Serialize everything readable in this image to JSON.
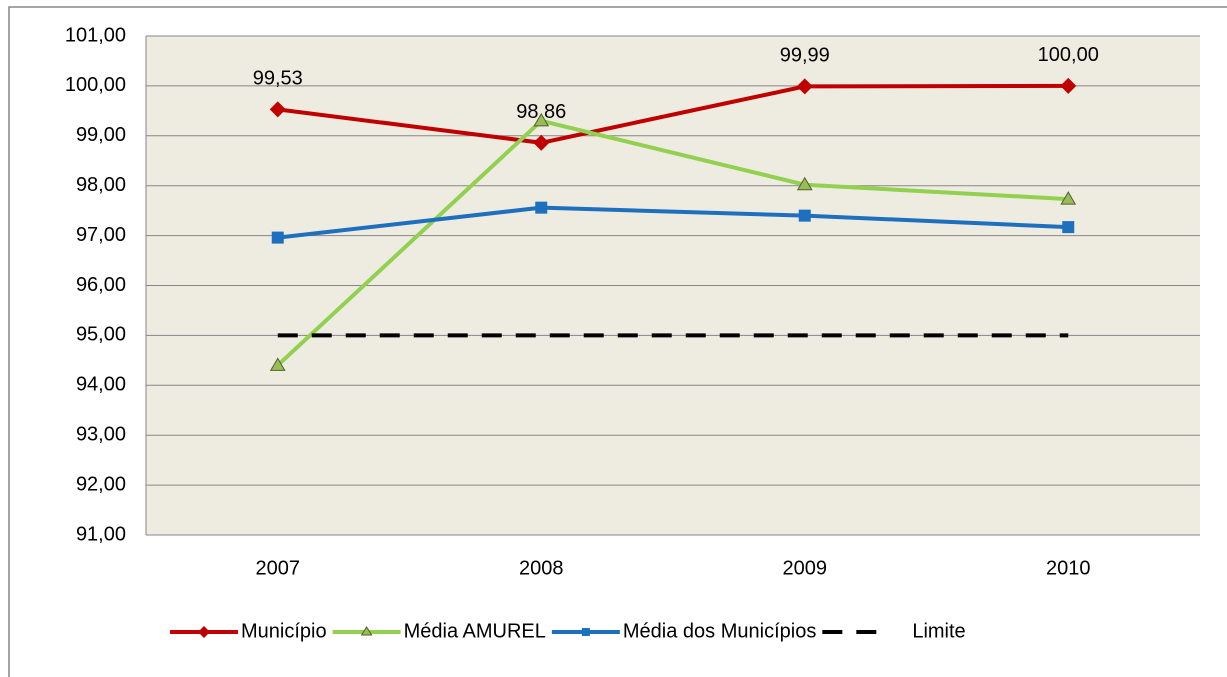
{
  "chart_data": {
    "type": "line",
    "categories": [
      "2007",
      "2008",
      "2009",
      "2010"
    ],
    "series": [
      {
        "name": "Município",
        "color": "#c00000",
        "marker": "diamond",
        "values": [
          99.53,
          98.86,
          99.99,
          100.0
        ],
        "value_labels": [
          "99,53",
          "98,86",
          "99,99",
          "100,00"
        ]
      },
      {
        "name": "Média AMUREL",
        "color": "#92d050",
        "marker": "triangle",
        "values": [
          94.4,
          99.3,
          98.02,
          97.73
        ]
      },
      {
        "name": "Média dos Municípios",
        "color": "#1f6fbf",
        "marker": "square",
        "values": [
          96.96,
          97.56,
          97.4,
          97.17
        ]
      },
      {
        "name": "Limite",
        "color": "#000000",
        "dashed": true,
        "values": [
          95,
          95,
          95,
          95
        ]
      }
    ],
    "ylim": [
      91,
      101
    ],
    "yticks": [
      {
        "value": 91,
        "label": "91,00"
      },
      {
        "value": 92,
        "label": "92,00"
      },
      {
        "value": 93,
        "label": "93,00"
      },
      {
        "value": 94,
        "label": "94,00"
      },
      {
        "value": 95,
        "label": "95,00"
      },
      {
        "value": 96,
        "label": "96,00"
      },
      {
        "value": 97,
        "label": "97,00"
      },
      {
        "value": 98,
        "label": "98,00"
      },
      {
        "value": 99,
        "label": "99,00"
      },
      {
        "value": 100,
        "label": "100,00"
      },
      {
        "value": 101,
        "label": "101,00"
      }
    ],
    "grid": true,
    "legend": "bottom"
  }
}
